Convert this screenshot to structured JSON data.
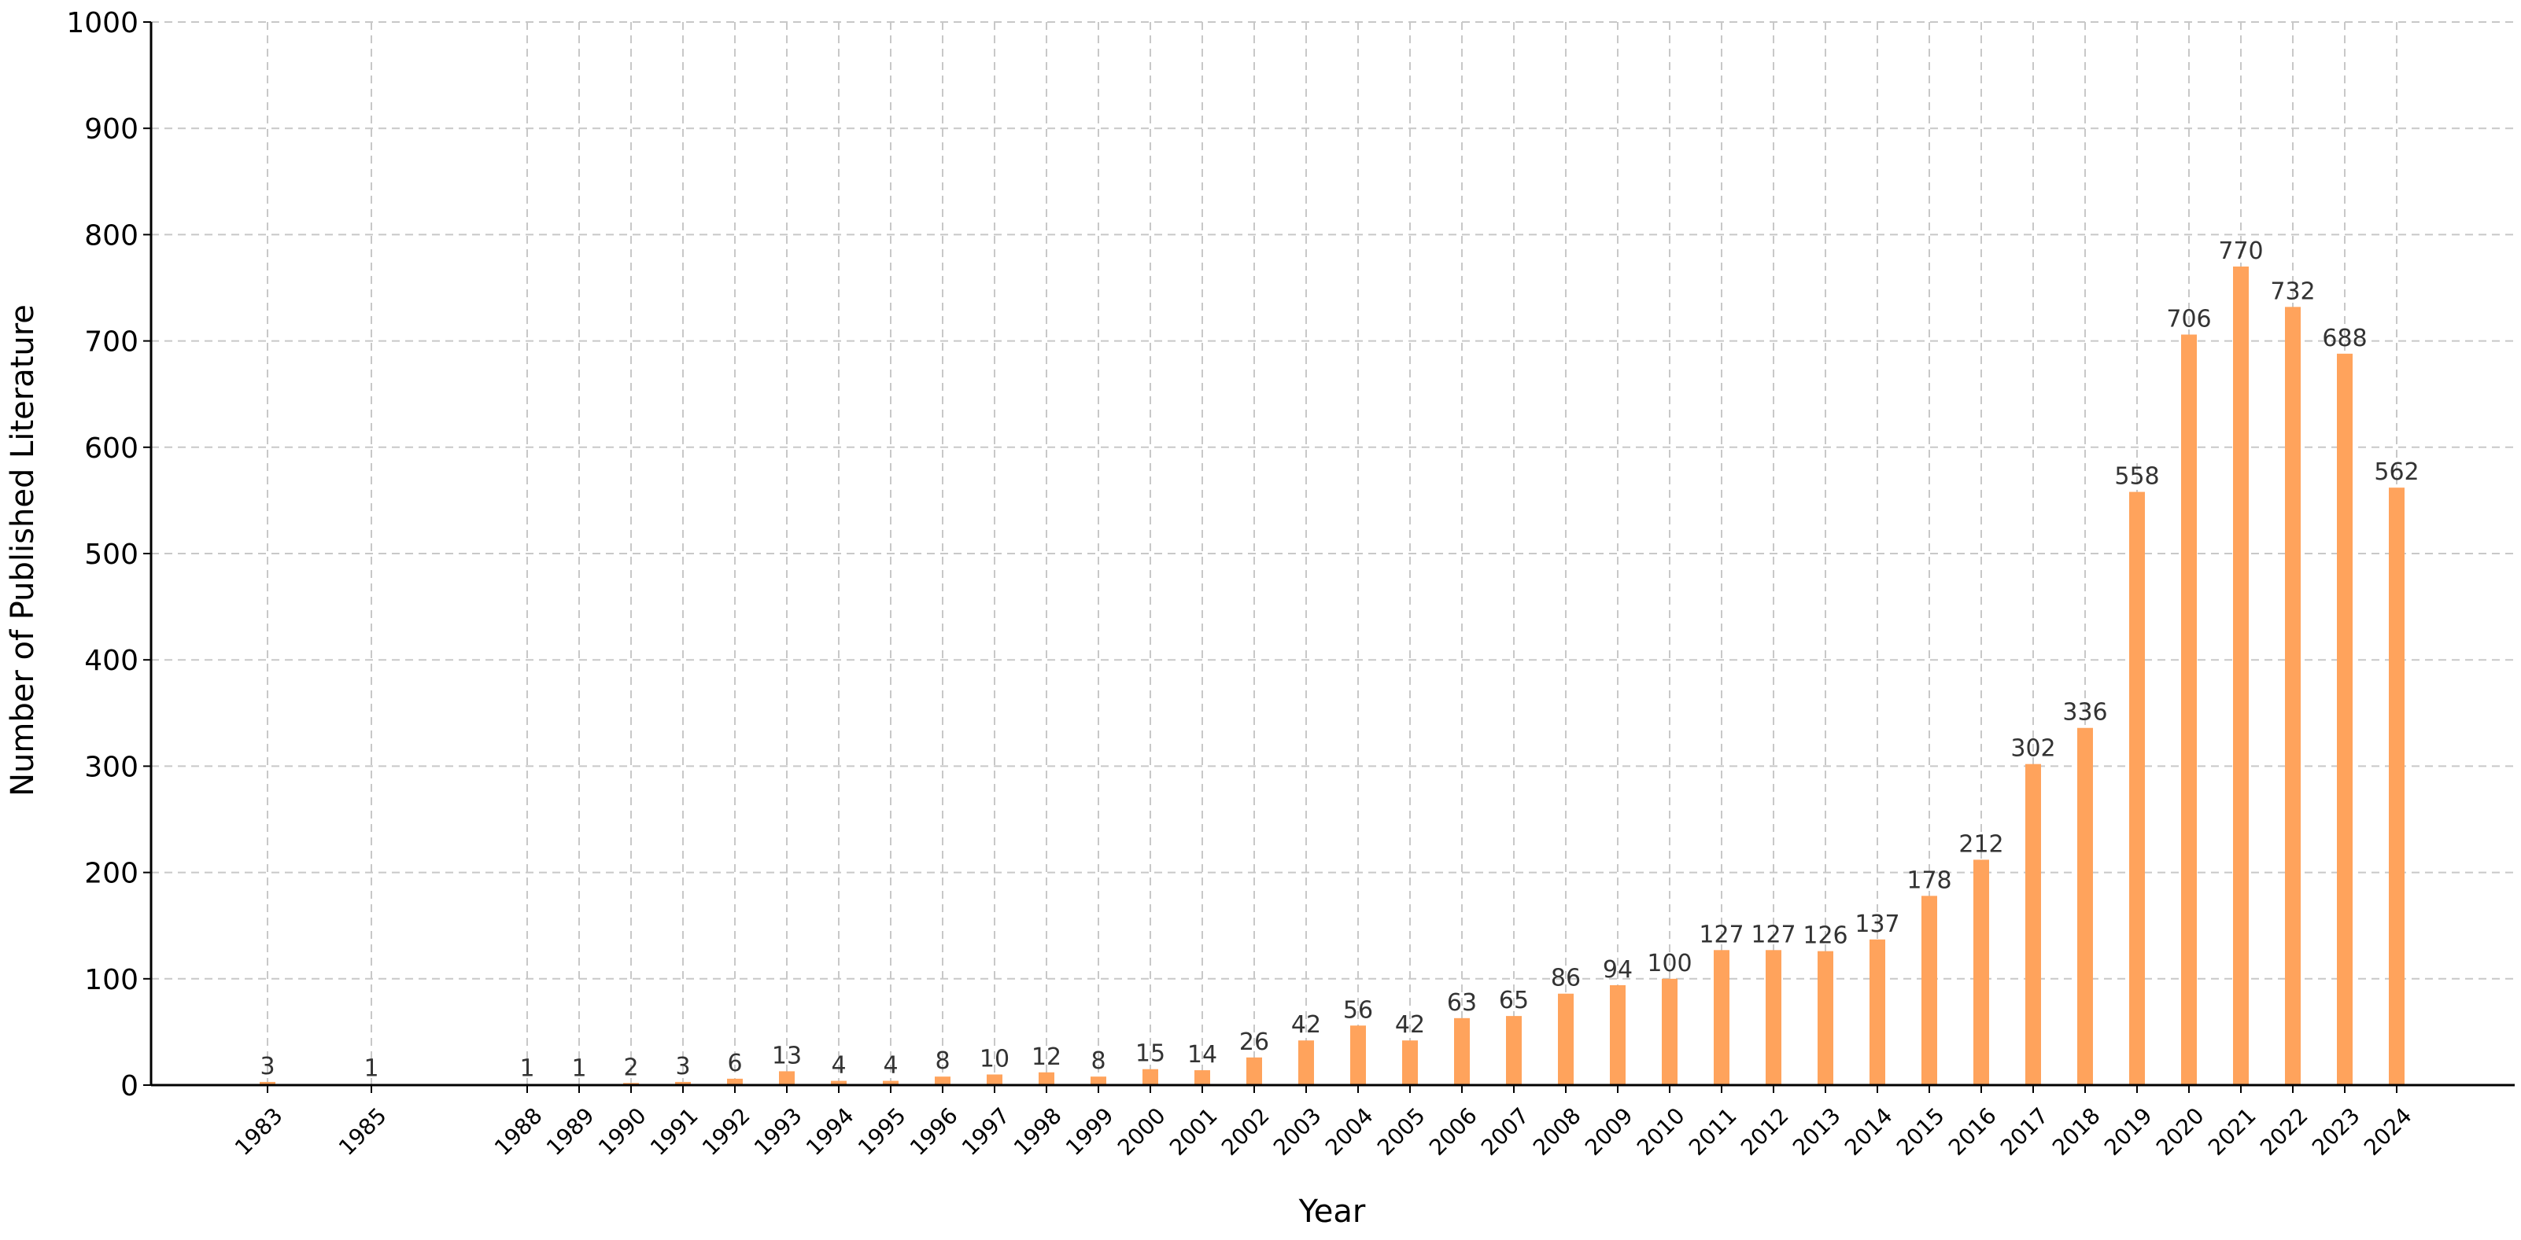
{
  "chart_data": {
    "type": "bar",
    "xlabel": "Year",
    "ylabel": "Number of Published Literature",
    "ylim": [
      0,
      1000
    ],
    "yticks": [
      0,
      100,
      200,
      300,
      400,
      500,
      600,
      700,
      800,
      900,
      1000
    ],
    "grid": true,
    "x_axis_type": "linear-year",
    "bar_color": "#FFA35C",
    "points": [
      {
        "year": 1983,
        "value": 3
      },
      {
        "year": 1985,
        "value": 1
      },
      {
        "year": 1988,
        "value": 1
      },
      {
        "year": 1989,
        "value": 1
      },
      {
        "year": 1990,
        "value": 2
      },
      {
        "year": 1991,
        "value": 3
      },
      {
        "year": 1992,
        "value": 6
      },
      {
        "year": 1993,
        "value": 13
      },
      {
        "year": 1994,
        "value": 4
      },
      {
        "year": 1995,
        "value": 4
      },
      {
        "year": 1996,
        "value": 8
      },
      {
        "year": 1997,
        "value": 10
      },
      {
        "year": 1998,
        "value": 12
      },
      {
        "year": 1999,
        "value": 8
      },
      {
        "year": 2000,
        "value": 15
      },
      {
        "year": 2001,
        "value": 14
      },
      {
        "year": 2002,
        "value": 26
      },
      {
        "year": 2003,
        "value": 42
      },
      {
        "year": 2004,
        "value": 56
      },
      {
        "year": 2005,
        "value": 42
      },
      {
        "year": 2006,
        "value": 63
      },
      {
        "year": 2007,
        "value": 65
      },
      {
        "year": 2008,
        "value": 86
      },
      {
        "year": 2009,
        "value": 94
      },
      {
        "year": 2010,
        "value": 100
      },
      {
        "year": 2011,
        "value": 127
      },
      {
        "year": 2012,
        "value": 127
      },
      {
        "year": 2013,
        "value": 126
      },
      {
        "year": 2014,
        "value": 137
      },
      {
        "year": 2015,
        "value": 178
      },
      {
        "year": 2016,
        "value": 212
      },
      {
        "year": 2017,
        "value": 302
      },
      {
        "year": 2018,
        "value": 336
      },
      {
        "year": 2019,
        "value": 558
      },
      {
        "year": 2020,
        "value": 706
      },
      {
        "year": 2021,
        "value": 770
      },
      {
        "year": 2022,
        "value": 732
      },
      {
        "year": 2023,
        "value": 688
      },
      {
        "year": 2024,
        "value": 562
      }
    ]
  }
}
